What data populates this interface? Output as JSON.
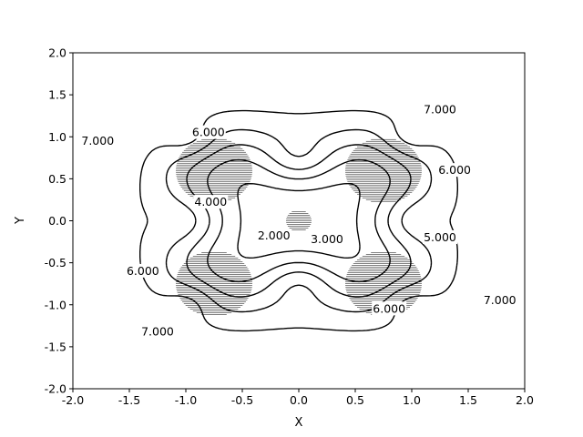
{
  "chart_data": {
    "type": "contour",
    "title": "",
    "xlabel": "X",
    "ylabel": "Y",
    "xlim": [
      -2.0,
      2.0
    ],
    "ylim": [
      -2.0,
      2.0
    ],
    "xticks": [
      "-2.0",
      "-1.5",
      "-1.0",
      "-0.5",
      "0.0",
      "0.5",
      "1.0",
      "1.5",
      "2.0"
    ],
    "yticks": [
      "-2.0",
      "-1.5",
      "-1.0",
      "-0.5",
      "0.0",
      "0.5",
      "1.0",
      "1.5",
      "2.0"
    ],
    "grid": false,
    "line_style": "dashed",
    "levels": [
      2.0,
      3.0,
      4.0,
      5.0,
      6.0,
      7.0
    ],
    "dense_regions": [
      {
        "name": "center",
        "x": 0.0,
        "y": 0.0
      },
      {
        "name": "upper-left-lobe",
        "x": -0.75,
        "y": 0.6
      },
      {
        "name": "upper-right-lobe",
        "x": 0.75,
        "y": 0.6
      },
      {
        "name": "lower-left-lobe",
        "x": -0.75,
        "y": -0.75
      },
      {
        "name": "lower-right-lobe",
        "x": 0.75,
        "y": -0.75
      }
    ],
    "contour_labels": [
      {
        "text": "2.000",
        "x": -0.22,
        "y": -0.18
      },
      {
        "text": "3.000",
        "x": 0.25,
        "y": -0.22
      },
      {
        "text": "4.000",
        "x": -0.78,
        "y": 0.22
      },
      {
        "text": "5.000",
        "x": 1.25,
        "y": -0.2
      },
      {
        "text": "6.000",
        "x": -0.8,
        "y": 1.05
      },
      {
        "text": "6.000",
        "x": 1.38,
        "y": 0.6
      },
      {
        "text": "6.000",
        "x": -1.38,
        "y": -0.6
      },
      {
        "text": "6.000",
        "x": 0.8,
        "y": -1.05
      },
      {
        "text": "7.000",
        "x": -1.78,
        "y": 0.95
      },
      {
        "text": "7.000",
        "x": 1.25,
        "y": 1.32
      },
      {
        "text": "7.000",
        "x": 1.78,
        "y": -0.95
      },
      {
        "text": "7.000",
        "x": -1.25,
        "y": -1.32
      }
    ]
  }
}
